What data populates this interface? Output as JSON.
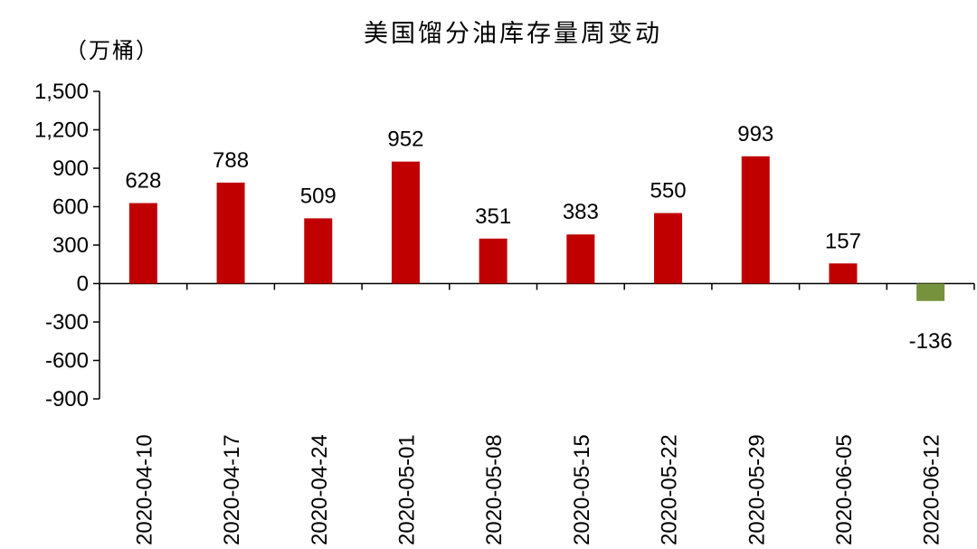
{
  "chart_data": {
    "type": "bar",
    "title": "美国馏分油库存量周变动",
    "unit_label": "（万桶）",
    "categories": [
      "2020-04-10",
      "2020-04-17",
      "2020-04-24",
      "2020-05-01",
      "2020-05-08",
      "2020-05-15",
      "2020-05-22",
      "2020-05-29",
      "2020-06-05",
      "2020-06-12"
    ],
    "values": [
      628,
      788,
      509,
      952,
      351,
      383,
      550,
      993,
      157,
      -136
    ],
    "value_labels": [
      "628",
      "788",
      "509",
      "952",
      "351",
      "383",
      "550",
      "993",
      "157",
      "-136"
    ],
    "y_ticks": [
      1500,
      1200,
      900,
      600,
      300,
      0,
      -300,
      -600,
      -900
    ],
    "y_tick_labels": [
      "1,500",
      "1,200",
      "900",
      "600",
      "300",
      "0",
      "-300",
      "-600",
      "-900"
    ],
    "ylim": [
      -900,
      1500
    ],
    "grid": false,
    "legend": "none",
    "colors": {
      "positive": "#C00000",
      "negative": "#76923C"
    }
  }
}
